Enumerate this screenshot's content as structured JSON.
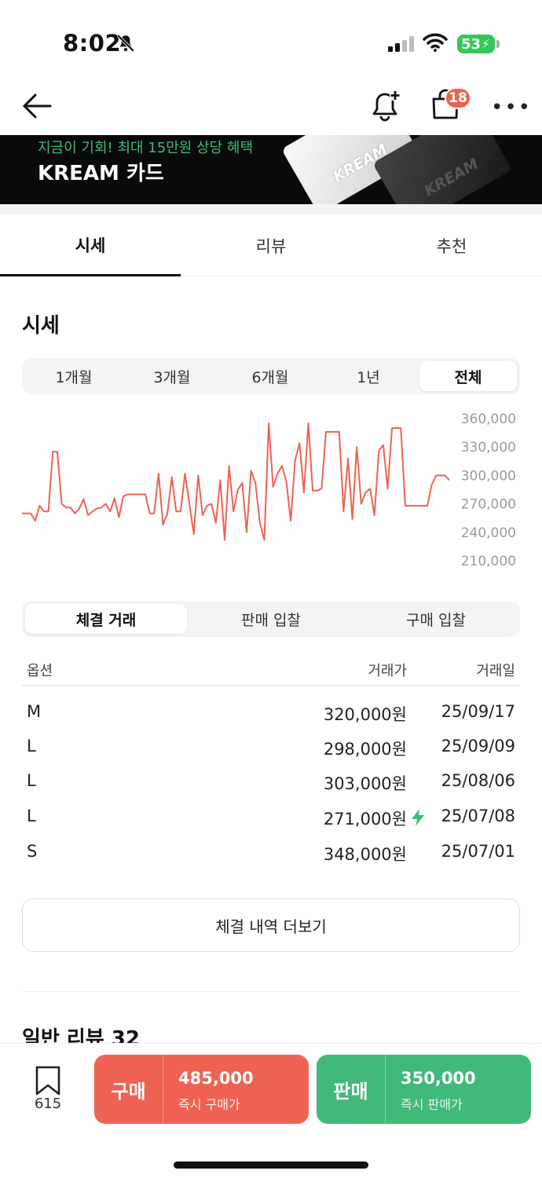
{
  "status": {
    "time": "8:02",
    "battery": "53"
  },
  "header": {
    "cart_badge": "18"
  },
  "banner": {
    "subtitle": "지금이 기회! 최대 15만원 상당 혜택",
    "title": "KREAM 카드",
    "card_text": "KREAM"
  },
  "tabs": [
    "시세",
    "리뷰",
    "추천"
  ],
  "section_title": "시세",
  "periods": [
    "1개월",
    "3개월",
    "6개월",
    "1년",
    "전체"
  ],
  "chart_data": {
    "type": "line",
    "color": "#ef6253",
    "yticks": [
      "360,000",
      "330,000",
      "300,000",
      "270,000",
      "240,000",
      "210,000"
    ],
    "ylim": [
      210000,
      360000
    ],
    "series": [
      {
        "values": [
          260000,
          260000,
          260000,
          252000,
          268000,
          262000,
          262000,
          325000,
          325000,
          270000,
          266000,
          266000,
          260000,
          265000,
          275000,
          258000,
          262000,
          265000,
          266000,
          270000,
          262000,
          276000,
          256000,
          278000,
          280000,
          280000,
          280000,
          280000,
          280000,
          260000,
          260000,
          302000,
          248000,
          260000,
          298000,
          262000,
          262000,
          302000,
          270000,
          238000,
          300000,
          258000,
          268000,
          270000,
          250000,
          295000,
          232000,
          310000,
          262000,
          285000,
          292000,
          240000,
          305000,
          292000,
          250000,
          232000,
          355000,
          288000,
          302000,
          310000,
          294000,
          252000,
          316000,
          334000,
          282000,
          355000,
          284000,
          284000,
          286000,
          346000,
          346000,
          346000,
          346000,
          262000,
          318000,
          254000,
          330000,
          270000,
          282000,
          286000,
          258000,
          326000,
          332000,
          286000,
          350000,
          350000,
          350000,
          268000,
          268000,
          268000,
          268000,
          268000,
          268000,
          290000,
          300000,
          300000,
          300000,
          295000
        ]
      }
    ]
  },
  "trade_tabs": [
    "체결 거래",
    "판매 입찰",
    "구매 입찰"
  ],
  "table": {
    "headers": [
      "옵션",
      "거래가",
      "거래일"
    ],
    "rows": [
      {
        "option": "M",
        "price": "320,000원",
        "date": "25/09/17",
        "lightning": false
      },
      {
        "option": "L",
        "price": "298,000원",
        "date": "25/09/09",
        "lightning": false
      },
      {
        "option": "L",
        "price": "303,000원",
        "date": "25/08/06",
        "lightning": false
      },
      {
        "option": "L",
        "price": "271,000원",
        "date": "25/07/08",
        "lightning": true
      },
      {
        "option": "S",
        "price": "348,000원",
        "date": "25/07/01",
        "lightning": false
      }
    ]
  },
  "more_button": "체결 내역 더보기",
  "review_title": "일반 리뷰 32",
  "bottom": {
    "bookmark_count": "615",
    "buy": {
      "label": "구매",
      "price": "485,000",
      "sub": "즉시 구매가"
    },
    "sell": {
      "label": "판매",
      "price": "350,000",
      "sub": "즉시 판매가"
    }
  }
}
